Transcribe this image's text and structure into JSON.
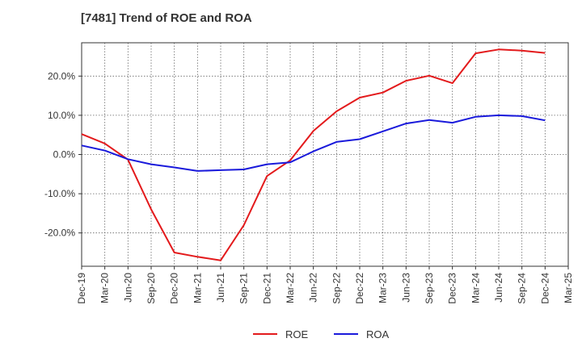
{
  "chart_data": {
    "type": "line",
    "title": "[7481]  Trend of ROE and ROA",
    "xlabel": "",
    "ylabel": "",
    "x": [
      "Dec-19",
      "Mar-20",
      "Jun-20",
      "Sep-20",
      "Dec-20",
      "Mar-21",
      "Jun-21",
      "Sep-21",
      "Dec-21",
      "Mar-22",
      "Jun-22",
      "Sep-22",
      "Dec-22",
      "Mar-23",
      "Jun-23",
      "Sep-23",
      "Dec-23",
      "Mar-24",
      "Jun-24",
      "Sep-24",
      "Dec-24",
      "Mar-25"
    ],
    "y_ticks": [
      20,
      10,
      0,
      -10,
      -20
    ],
    "y_tick_labels": [
      "20.0%",
      "10.0%",
      "0.0%",
      "-10.0%",
      "-20.0%"
    ],
    "ylim": [
      -28.5,
      28.5
    ],
    "grid": true,
    "legend_position": "bottom-center",
    "series": [
      {
        "name": "ROE",
        "color": "#e31a1c",
        "values": [
          5.2,
          2.8,
          -1.3,
          -14.0,
          -25.0,
          -26.1,
          -27.0,
          -18.0,
          -5.5,
          -1.5,
          6.0,
          11.0,
          14.5,
          15.8,
          18.8,
          20.1,
          18.2,
          25.8,
          26.8,
          26.5,
          25.9,
          null
        ]
      },
      {
        "name": "ROA",
        "color": "#1a1adb",
        "values": [
          2.3,
          1.0,
          -1.2,
          -2.5,
          -3.3,
          -4.2,
          -4.0,
          -3.8,
          -2.5,
          -2.0,
          0.8,
          3.2,
          3.9,
          5.9,
          7.9,
          8.8,
          8.1,
          9.6,
          10.0,
          9.8,
          8.7,
          null
        ]
      }
    ]
  }
}
